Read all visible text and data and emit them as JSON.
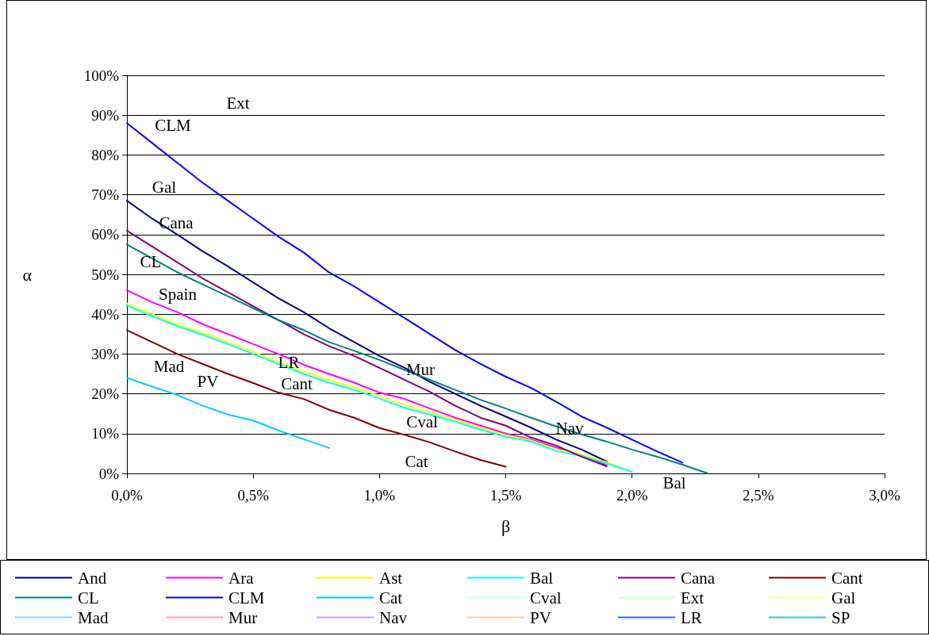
{
  "chart_data": {
    "type": "line",
    "xlabel": "β",
    "ylabel": "α",
    "xlim": [
      0,
      3
    ],
    "xticks": [
      {
        "value": 0,
        "label": "0,0%"
      },
      {
        "value": 0.5,
        "label": "0,5%"
      },
      {
        "value": 1,
        "label": "1,0%"
      },
      {
        "value": 1.5,
        "label": "1,5%"
      },
      {
        "value": 2,
        "label": "2,0%"
      },
      {
        "value": 2.5,
        "label": "2,5%"
      },
      {
        "value": 3,
        "label": "3,0%"
      }
    ],
    "ylim": [
      0,
      100
    ],
    "yticks": [
      {
        "value": 0,
        "label": "0%"
      },
      {
        "value": 10,
        "label": "10%"
      },
      {
        "value": 20,
        "label": "20%"
      },
      {
        "value": 30,
        "label": "30%"
      },
      {
        "value": 40,
        "label": "40%"
      },
      {
        "value": 50,
        "label": "50%"
      },
      {
        "value": 60,
        "label": "60%"
      },
      {
        "value": 70,
        "label": "70%"
      },
      {
        "value": 80,
        "label": "80%"
      },
      {
        "value": 90,
        "label": "90%"
      },
      {
        "value": 100,
        "label": "100%"
      }
    ],
    "grid": "y",
    "legend": "bottom",
    "marker": "none",
    "line_style": "solid",
    "series": [
      {
        "name": "And",
        "color": "#000080",
        "x": [
          0,
          0.1,
          0.2,
          0.3,
          0.4,
          0.5,
          0.6,
          0.7,
          0.8,
          0.9,
          1.0,
          1.1,
          1.2,
          1.3,
          1.4,
          1.5,
          1.6,
          1.7,
          1.8,
          1.9
        ],
        "values": [
          68.5,
          64,
          60,
          55.8,
          52,
          48,
          44,
          40.5,
          36.5,
          33,
          29.5,
          26.5,
          23,
          20,
          17,
          14.3,
          11.5,
          8.5,
          6,
          3
        ]
      },
      {
        "name": "Ara",
        "color": "#ff00ff",
        "x": [
          0,
          0.1,
          0.2,
          0.3,
          0.4,
          0.5,
          0.6,
          0.7,
          0.8,
          0.9,
          1.0,
          1.1,
          1.2,
          1.3,
          1.4,
          1.5,
          1.6,
          1.7,
          1.8,
          1.9
        ],
        "values": [
          46,
          43,
          40.5,
          37.5,
          35,
          32.5,
          30,
          27.3,
          25,
          22.8,
          20.3,
          18.7,
          16.3,
          14,
          12,
          10,
          8.5,
          6.5,
          4.5,
          2
        ]
      },
      {
        "name": "Ast",
        "color": "#ffff00",
        "x": [
          0,
          0.1,
          0.2,
          0.3,
          0.4,
          0.5,
          0.6,
          0.7,
          0.8,
          0.9,
          1.0,
          1.1,
          1.2,
          1.3,
          1.4,
          1.5,
          1.6,
          1.7,
          1.8,
          1.9,
          2.0
        ],
        "values": [
          42.7,
          40,
          37.4,
          35.2,
          33,
          30.5,
          28,
          25.6,
          23.4,
          21.6,
          19.5,
          17.2,
          15.4,
          13.5,
          11.5,
          9.6,
          8.3,
          6,
          4.8,
          2.8,
          0.4
        ]
      },
      {
        "name": "Bal",
        "color": "#00ffff",
        "x": [
          0,
          0.1,
          0.2,
          0.3,
          0.4,
          0.5,
          0.6,
          0.7,
          0.8,
          0.9,
          1.0,
          1.1,
          1.2,
          1.3,
          1.4,
          1.5,
          1.6,
          1.7,
          1.8,
          1.9,
          2.0
        ],
        "values": [
          42.2,
          39.5,
          37,
          34.8,
          32.5,
          30,
          27.5,
          25,
          22.8,
          21,
          18.8,
          16.5,
          14.8,
          13,
          11,
          9.2,
          8,
          5.6,
          4.4,
          2.5,
          0.4
        ]
      },
      {
        "name": "Cana",
        "color": "#800080",
        "x": [
          0,
          0.1,
          0.2,
          0.3,
          0.4,
          0.5,
          0.6,
          0.7,
          0.8,
          0.9,
          1.0,
          1.1,
          1.2,
          1.3,
          1.4,
          1.5,
          1.6,
          1.7,
          1.8,
          1.9
        ],
        "values": [
          61,
          57,
          53,
          49,
          45.5,
          42,
          38.5,
          35,
          32,
          29.5,
          26.5,
          23.5,
          20.5,
          17,
          14,
          12,
          9,
          7,
          4.2,
          1.8
        ]
      },
      {
        "name": "Cant",
        "color": "#800000",
        "x": [
          0,
          0.1,
          0.2,
          0.3,
          0.4,
          0.5,
          0.6,
          0.7,
          0.8,
          0.9,
          1.0,
          1.1,
          1.2,
          1.3,
          1.4,
          1.5
        ],
        "values": [
          36,
          33,
          30,
          27.5,
          25,
          22.7,
          20.3,
          18.7,
          16,
          14,
          11.4,
          9.7,
          7.8,
          5.5,
          3.4,
          1.7
        ]
      },
      {
        "name": "CL",
        "color": "#008080",
        "x": [
          0,
          0.1,
          0.2,
          0.3,
          0.4,
          0.5,
          0.6,
          0.7,
          0.8,
          0.9,
          1.0,
          1.1,
          1.2,
          1.3,
          1.4,
          1.5,
          1.6,
          1.7,
          1.8,
          1.9,
          2.0,
          2.1,
          2.2,
          2.3
        ],
        "values": [
          57.5,
          54,
          50.5,
          47.5,
          44.5,
          41.5,
          38.5,
          36,
          33,
          30.8,
          28.5,
          26,
          23.5,
          21,
          18.5,
          16.3,
          14,
          11.8,
          9.8,
          8,
          6,
          4.2,
          2.2,
          0
        ]
      },
      {
        "name": "CLM",
        "color": "#0000ff",
        "x": [
          0,
          0.1,
          0.2,
          0.3,
          0.4,
          0.5,
          0.6,
          0.7,
          0.8,
          0.9,
          1.0,
          1.1,
          1.2,
          1.3,
          1.4,
          1.5,
          1.6,
          1.7,
          1.8,
          1.9,
          2.0,
          2.1,
          2.2
        ],
        "values": [
          88,
          83,
          78,
          73,
          68.5,
          64,
          59.5,
          55.5,
          50.5,
          47,
          43,
          39,
          35,
          31,
          27.5,
          24.3,
          21.5,
          18,
          14.3,
          11.5,
          8.5,
          5.5,
          2.7
        ]
      },
      {
        "name": "Cat",
        "color": "#00ccff",
        "x": [
          0,
          0.1,
          0.2,
          0.3,
          0.4,
          0.5,
          0.6,
          0.7,
          0.8
        ],
        "values": [
          24,
          21.8,
          19.7,
          17,
          14.8,
          13.3,
          10.8,
          8.6,
          6.4
        ]
      },
      {
        "name": "Cval",
        "color": "#ccffff"
      },
      {
        "name": "Ext",
        "color": "#ccffcc"
      },
      {
        "name": "Gal",
        "color": "#ffff99"
      },
      {
        "name": "Mad",
        "color": "#99ccff"
      },
      {
        "name": "Mur",
        "color": "#ff99cc"
      },
      {
        "name": "Nav",
        "color": "#cc99ff"
      },
      {
        "name": "PV",
        "color": "#ffcc99"
      },
      {
        "name": "LR",
        "color": "#3366ff"
      },
      {
        "name": "SP",
        "color": "#33cccc"
      }
    ],
    "annotations": [
      "Ext",
      "CLM",
      "Gal",
      "Cana",
      "CL",
      "Spain",
      "Mad",
      "LR",
      "PV",
      "Cant",
      "Mur",
      "Cval",
      "Nav",
      "Cat",
      "Bal"
    ]
  }
}
